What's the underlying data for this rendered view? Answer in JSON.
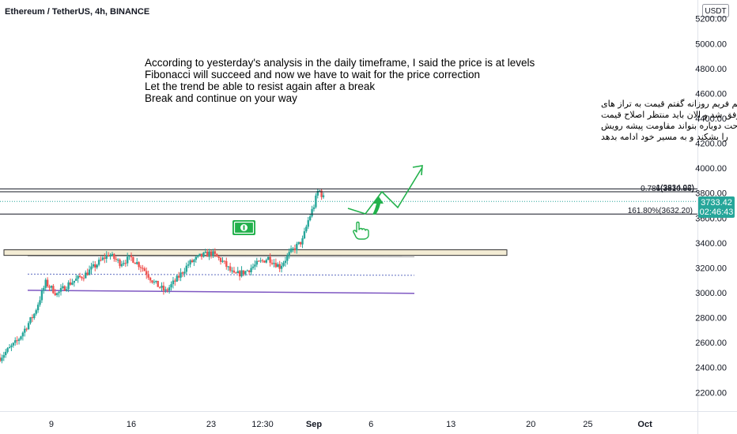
{
  "header": {
    "symbol_title": "Ethereum / TetherUS, 4h, BINANCE"
  },
  "currency_label": "USDT",
  "price_tag": {
    "price": "3733.42",
    "countdown": "02:46:43",
    "value": 3733.42,
    "color": "#26a69a"
  },
  "colors": {
    "up": "#26a69a",
    "down": "#ef5350",
    "annotation_green": "#22b14c",
    "support_purple": "#7e57c2",
    "zone_fill": "#f3ecd4"
  },
  "annotations": {
    "english_lines": [
      "According to yesterday's analysis in the daily timeframe, I said the price is at levels",
      "Fibonacci will succeed and now we have to wait for the price correction",
      "Let the trend be able to resist again after a break",
      "Break and continue on your way"
    ],
    "persian_lines": [
      "طبق تحلیل دیروز در تایم فریم روزانه گفتم قیمت به تراز های",
      "فیبوناچی خواهد رسید که موفق شد و الان باید منتظر اصلاح قیمت",
      "باشیم که روند بعد از یک استراحت دوباره بتواند مقاومت پیشه رویش",
      "را بشکند و به مسیر خود ادامه بدهد"
    ]
  },
  "fib_labels": {
    "level_0786": "0.786(3810.86)",
    "level_1618": "161.80%(3632.20)",
    "level_1": "1(3834.02)"
  },
  "icons": {
    "banknote": "banknote-icon",
    "pointing_hand": "pointing-hand-icon",
    "arrow": "trend-arrow-icon"
  },
  "chart_data": {
    "type": "candlestick",
    "title": "Ethereum / TetherUS, 4h, BINANCE",
    "y_ticks": [
      "5200.00",
      "5000.00",
      "4800.00",
      "4600.00",
      "4400.00",
      "4200.00",
      "4000.00",
      "3800.00",
      "3600.00",
      "3400.00",
      "3200.00",
      "3000.00",
      "2800.00",
      "2600.00",
      "2400.00",
      "2200.00"
    ],
    "y_tick_values": [
      5200,
      5000,
      4800,
      4600,
      4400,
      4200,
      4000,
      3800,
      3600,
      3400,
      3200,
      3000,
      2800,
      2600,
      2400,
      2200
    ],
    "ylim": [
      2050,
      5350
    ],
    "x_ticks": [
      {
        "label": "9",
        "day": 9
      },
      {
        "label": "16",
        "day": 16
      },
      {
        "label": "23",
        "day": 23
      },
      {
        "label": "12:30",
        "day": 27.5
      },
      {
        "label": "Sep",
        "day": 32,
        "bold": true
      },
      {
        "label": "6",
        "day": 37
      },
      {
        "label": "13",
        "day": 44
      },
      {
        "label": "20",
        "day": 51
      },
      {
        "label": "25",
        "day": 56
      },
      {
        "label": "Oct",
        "day": 61,
        "bold": true
      }
    ],
    "xlim": [
      4.5,
      65.6
    ],
    "price_path": [
      [
        4.5,
        2480
      ],
      [
        6.0,
        2610
      ],
      [
        7.5,
        2830
      ],
      [
        8.5,
        3080
      ],
      [
        9.5,
        2990
      ],
      [
        10.5,
        3070
      ],
      [
        12.0,
        3150
      ],
      [
        13.0,
        3230
      ],
      [
        14.0,
        3310
      ],
      [
        15.0,
        3240
      ],
      [
        16.0,
        3280
      ],
      [
        17.0,
        3200
      ],
      [
        18.0,
        3080
      ],
      [
        19.0,
        3010
      ],
      [
        20.0,
        3110
      ],
      [
        21.0,
        3230
      ],
      [
        22.0,
        3290
      ],
      [
        23.0,
        3320
      ],
      [
        24.0,
        3250
      ],
      [
        25.0,
        3140
      ],
      [
        26.0,
        3170
      ],
      [
        27.0,
        3230
      ],
      [
        28.0,
        3280
      ],
      [
        29.0,
        3210
      ],
      [
        30.0,
        3330
      ],
      [
        31.0,
        3420
      ],
      [
        31.5,
        3580
      ],
      [
        32.0,
        3700
      ],
      [
        32.4,
        3834
      ],
      [
        33.0,
        3733
      ]
    ],
    "fib_levels": [
      {
        "name": "1",
        "value": 3834.02
      },
      {
        "name": "0.786",
        "value": 3810.86
      },
      {
        "name": "161.80%",
        "value": 3632.2
      }
    ],
    "resistance_zone": {
      "low": 3300,
      "high": 3345
    },
    "support_lines": [
      3020,
      3150,
      3295
    ]
  }
}
